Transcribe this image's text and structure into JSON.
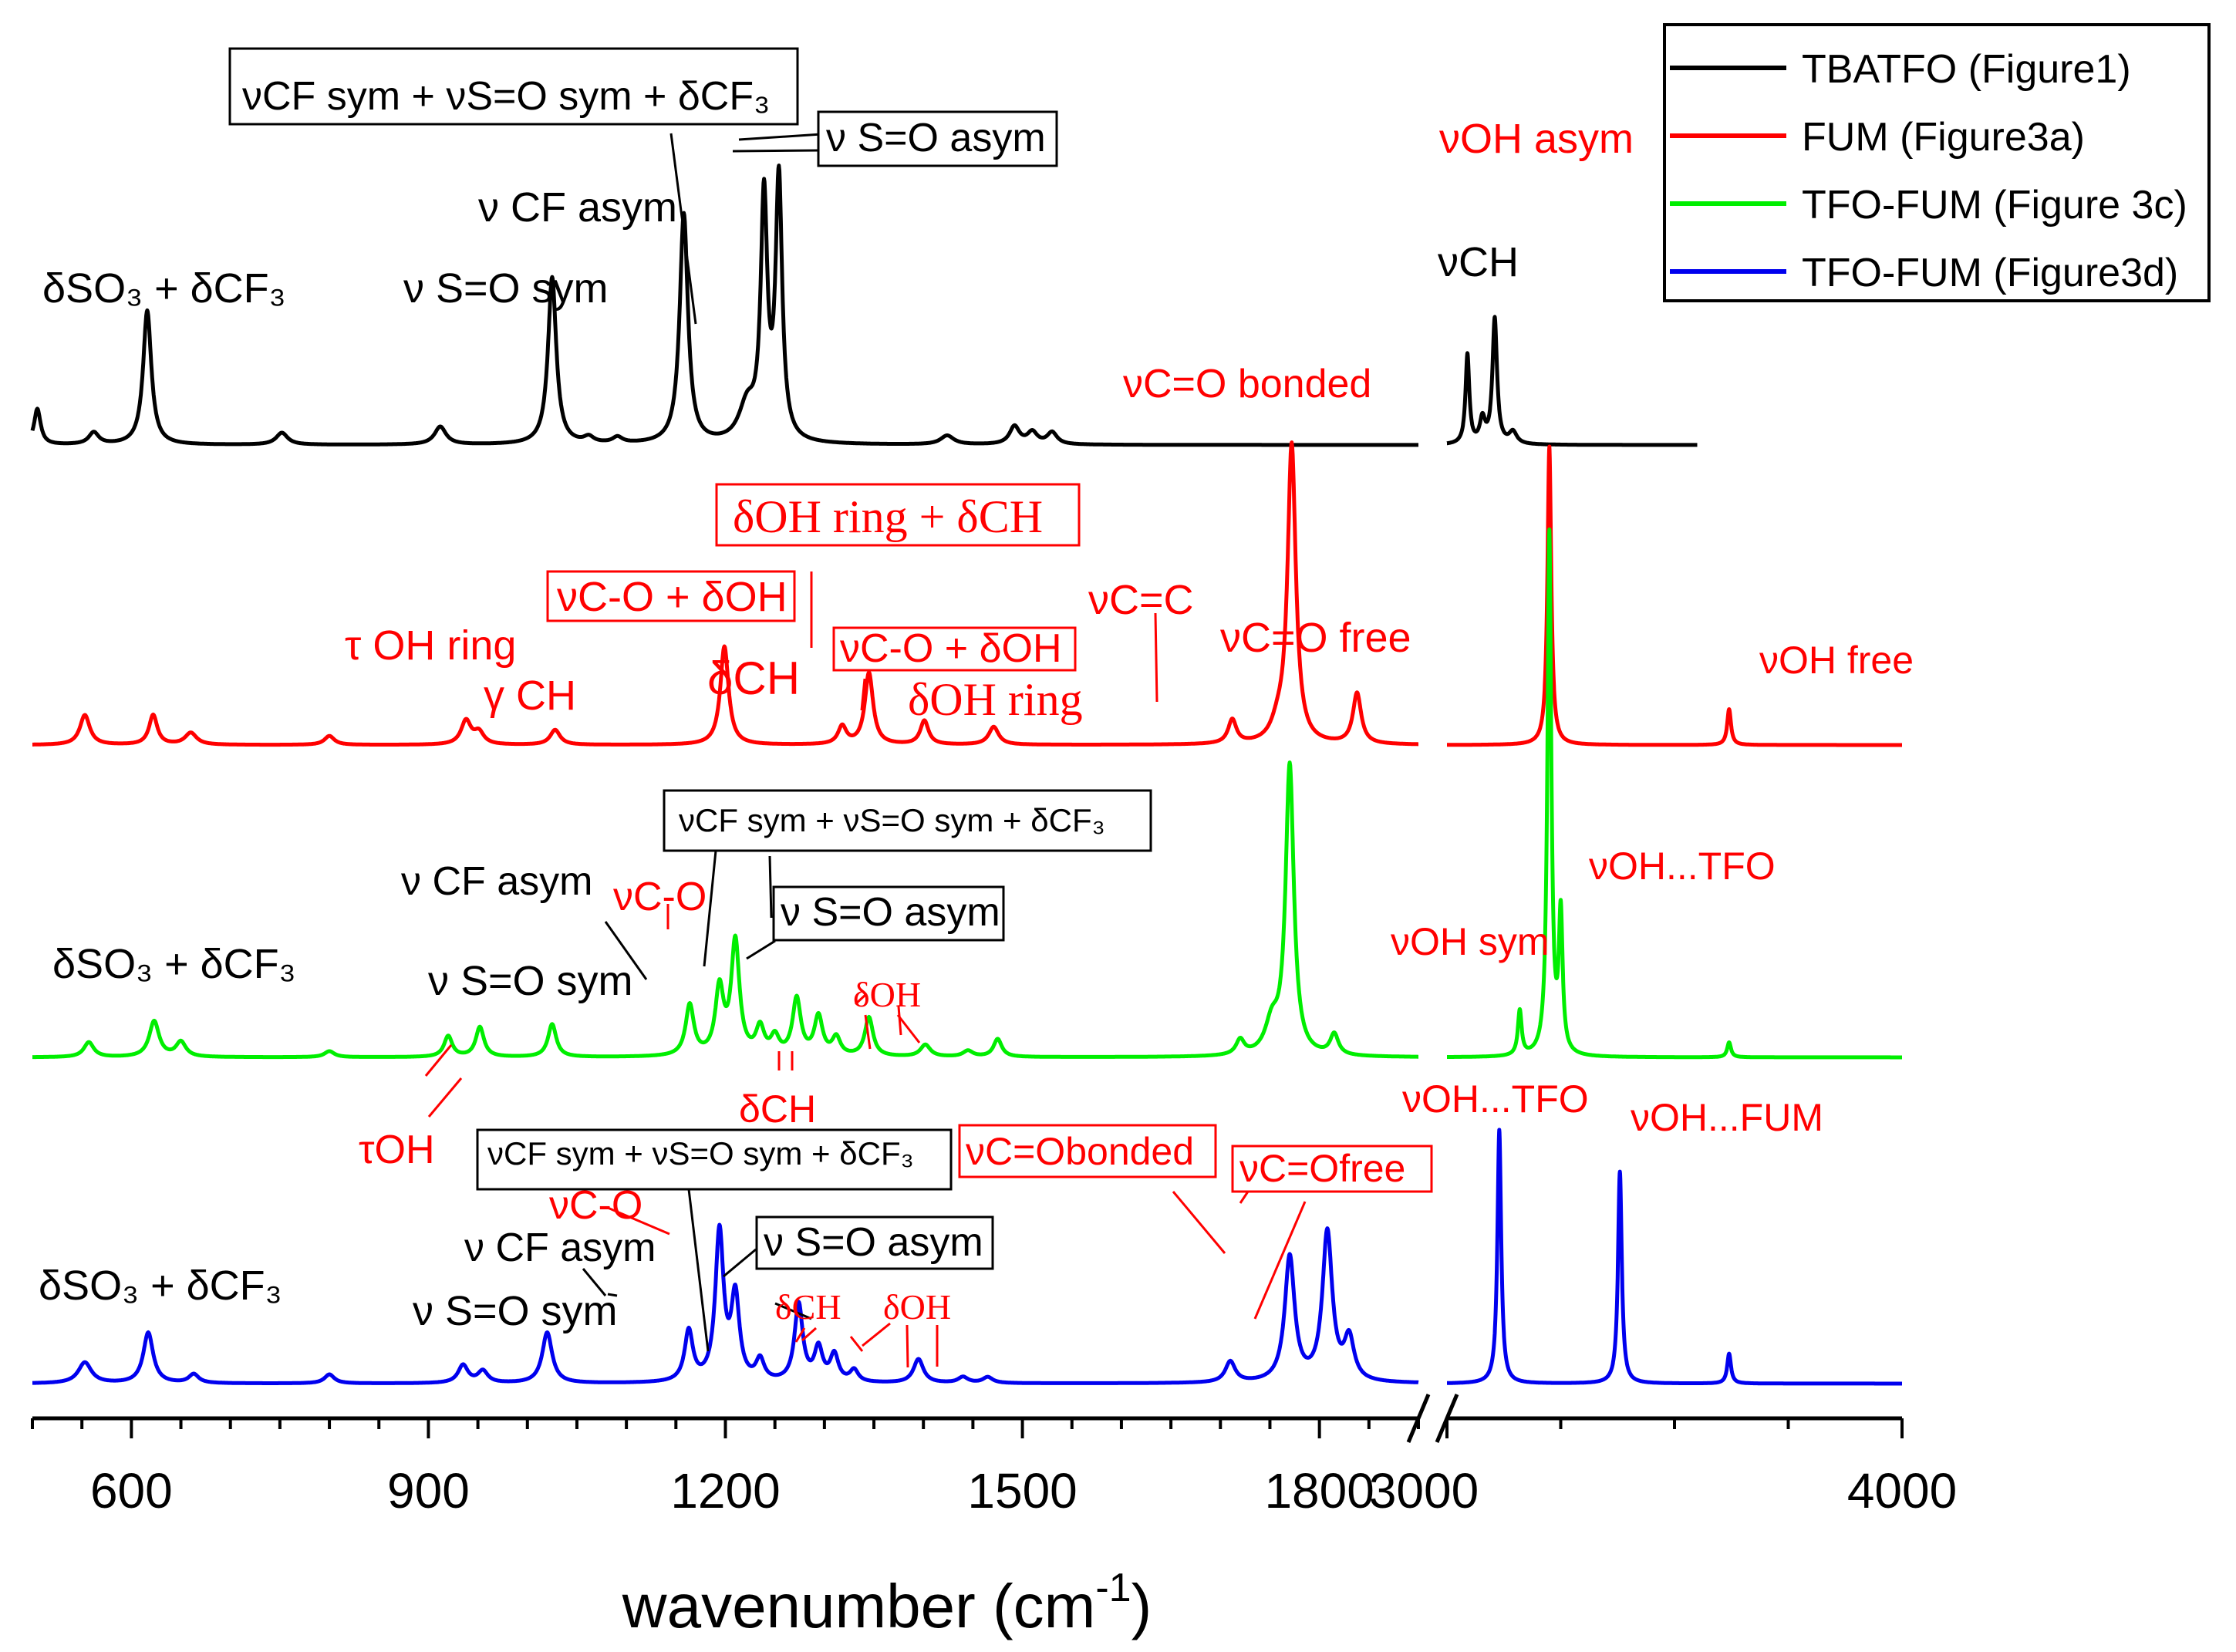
{
  "chart_data": {
    "type": "line",
    "title": "",
    "xlabel": "wavenumber (cm",
    "xlabel_sup": "-1",
    "xlabel_close": ")",
    "ylabel": "",
    "axis_break": "1900-3000",
    "segments": [
      {
        "xmin": 500,
        "xmax": 1900,
        "ticks": [
          600,
          900,
          1200,
          1500,
          1800
        ]
      },
      {
        "xmin": 3000,
        "xmax": 4000,
        "ticks": [
          3000,
          4000
        ]
      }
    ],
    "tick_labels": [
      "600",
      "900",
      "1200",
      "1500",
      "1800",
      "3000",
      "4000"
    ],
    "legend": {
      "position": "top-right",
      "entries": [
        {
          "label": "TBATFO (Figure1)",
          "color": "#000000"
        },
        {
          "label": "FUM (Figure3a)",
          "color": "#ff0000"
        },
        {
          "label": "TFO-FUM (Figure 3c)",
          "color": "#00ee00"
        },
        {
          "label": "TFO-FUM (Figure3d)",
          "color": "#0000ee"
        }
      ]
    },
    "series": [
      {
        "name": "TBATFO (Figure1)",
        "color": "#000000",
        "xmax": 3550,
        "offset": 3,
        "scale": 1.0,
        "peaks": [
          [
            505,
            0.12,
            4
          ],
          [
            562,
            0.04,
            6
          ],
          [
            616,
            0.45,
            5
          ],
          [
            752,
            0.04,
            7
          ],
          [
            912,
            0.06,
            7
          ],
          [
            1025,
            0.56,
            5
          ],
          [
            1062,
            0.02,
            6
          ],
          [
            1091,
            0.02,
            6
          ],
          [
            1158,
            0.77,
            5
          ],
          [
            1222,
            0.12,
            10
          ],
          [
            1239,
            0.8,
            4
          ],
          [
            1254,
            0.87,
            4
          ],
          [
            1424,
            0.03,
            8
          ],
          [
            1492,
            0.06,
            6
          ],
          [
            1510,
            0.04,
            6
          ],
          [
            1530,
            0.04,
            6
          ],
          [
            3045,
            0.3,
            5
          ],
          [
            3078,
            0.08,
            7
          ],
          [
            3105,
            0.42,
            6
          ],
          [
            3145,
            0.04,
            10
          ]
        ]
      },
      {
        "name": "FUM (Figure3a)",
        "color": "#ff0000",
        "offset": 2,
        "scale": 1.0,
        "peaks": [
          [
            553,
            0.1,
            6
          ],
          [
            622,
            0.1,
            5
          ],
          [
            660,
            0.04,
            7
          ],
          [
            800,
            0.03,
            6
          ],
          [
            938,
            0.08,
            6
          ],
          [
            951,
            0.04,
            6
          ],
          [
            1028,
            0.05,
            6
          ],
          [
            1199,
            0.33,
            5
          ],
          [
            1318,
            0.06,
            5
          ],
          [
            1345,
            0.24,
            5
          ],
          [
            1401,
            0.08,
            5
          ],
          [
            1471,
            0.06,
            6
          ],
          [
            1712,
            0.08,
            5
          ],
          [
            1758,
            0.05,
            8
          ],
          [
            1772,
            1.0,
            5
          ],
          [
            1838,
            0.17,
            5
          ],
          [
            3225,
            1.0,
            5
          ],
          [
            3620,
            0.12,
            5
          ]
        ]
      },
      {
        "name": "TFO-FUM (Figure 3c)",
        "color": "#00ee00",
        "offset": 1,
        "scale": 1.0,
        "peaks": [
          [
            557,
            0.05,
            6
          ],
          [
            623,
            0.12,
            6
          ],
          [
            650,
            0.05,
            6
          ],
          [
            800,
            0.02,
            6
          ],
          [
            920,
            0.07,
            5
          ],
          [
            952,
            0.1,
            5
          ],
          [
            1025,
            0.11,
            5
          ],
          [
            1164,
            0.17,
            5
          ],
          [
            1194,
            0.22,
            5
          ],
          [
            1210,
            0.38,
            5
          ],
          [
            1235,
            0.09,
            5
          ],
          [
            1250,
            0.06,
            5
          ],
          [
            1272,
            0.19,
            5
          ],
          [
            1294,
            0.13,
            5
          ],
          [
            1312,
            0.06,
            5
          ],
          [
            1345,
            0.13,
            5
          ],
          [
            1402,
            0.04,
            6
          ],
          [
            1445,
            0.02,
            6
          ],
          [
            1475,
            0.06,
            5
          ],
          [
            1720,
            0.05,
            5
          ],
          [
            1752,
            0.1,
            8
          ],
          [
            1770,
            0.97,
            5
          ],
          [
            1815,
            0.07,
            5
          ],
          [
            3160,
            0.15,
            5
          ],
          [
            3225,
            1.75,
            5
          ],
          [
            3250,
            0.46,
            5
          ],
          [
            3620,
            0.05,
            5
          ]
        ]
      },
      {
        "name": "TFO-FUM (Figure3d)",
        "color": "#0000ee",
        "offset": 0,
        "scale": 1.0,
        "peaks": [
          [
            553,
            0.07,
            8
          ],
          [
            617,
            0.17,
            6
          ],
          [
            663,
            0.03,
            6
          ],
          [
            800,
            0.03,
            6
          ],
          [
            935,
            0.06,
            6
          ],
          [
            955,
            0.04,
            6
          ],
          [
            1020,
            0.17,
            6
          ],
          [
            1163,
            0.17,
            5
          ],
          [
            1194,
            0.5,
            5
          ],
          [
            1210,
            0.28,
            5
          ],
          [
            1235,
            0.07,
            5
          ],
          [
            1274,
            0.26,
            5
          ],
          [
            1294,
            0.11,
            5
          ],
          [
            1310,
            0.09,
            5
          ],
          [
            1330,
            0.04,
            5
          ],
          [
            1395,
            0.08,
            6
          ],
          [
            1440,
            0.02,
            6
          ],
          [
            1465,
            0.02,
            6
          ],
          [
            1710,
            0.07,
            6
          ],
          [
            1770,
            0.42,
            6
          ],
          [
            1808,
            0.5,
            6
          ],
          [
            1830,
            0.14,
            6
          ],
          [
            3115,
            0.85,
            5
          ],
          [
            3380,
            0.71,
            5
          ],
          [
            3620,
            0.1,
            5
          ]
        ]
      }
    ],
    "annotations": [
      {
        "text": "δSO₃ + δCF₃",
        "series": "TBATFO (Figure1)",
        "color": "#000000",
        "boxed": false,
        "serif": false
      },
      {
        "text": "ν S=O sym",
        "series": "TBATFO (Figure1)",
        "color": "#000000",
        "boxed": false,
        "serif": false
      },
      {
        "text": "ν CF asym",
        "series": "TBATFO (Figure1)",
        "color": "#000000",
        "boxed": false,
        "serif": false
      },
      {
        "text": "νCF sym + νS=O sym + δCF₃",
        "series": "TBATFO (Figure1)",
        "color": "#000000",
        "boxed": true,
        "serif": false
      },
      {
        "text": "ν S=O asym",
        "series": "TBATFO (Figure1)",
        "color": "#000000",
        "boxed": true,
        "serif": false
      },
      {
        "text": "νCH",
        "series": "TBATFO (Figure1)",
        "color": "#000000",
        "boxed": false,
        "serif": false
      },
      {
        "text": "νOH asym",
        "series": "FUM (Figure3a)",
        "color": "#ff0000",
        "boxed": false,
        "serif": false
      },
      {
        "text": "νC=O bonded",
        "series": "FUM (Figure3a)",
        "color": "#ff0000",
        "boxed": false,
        "serif": false
      },
      {
        "text": "δOH ring + δCH",
        "series": "FUM (Figure3a)",
        "color": "#ff0000",
        "boxed": true,
        "serif": true
      },
      {
        "text": "νC-O + δOH",
        "series": "FUM (Figure3a)",
        "color": "#ff0000",
        "boxed": true,
        "serif": false
      },
      {
        "text": "τ OH ring",
        "series": "FUM (Figure3a)",
        "color": "#ff0000",
        "boxed": false,
        "serif": false
      },
      {
        "text": "γ CH",
        "series": "FUM (Figure3a)",
        "color": "#ff0000",
        "boxed": false,
        "serif": false
      },
      {
        "text": "δCH",
        "series": "FUM (Figure3a)",
        "color": "#ff0000",
        "boxed": false,
        "serif": false
      },
      {
        "text": "νC-O + δOH",
        "series": "FUM (Figure3a)",
        "color": "#ff0000",
        "boxed": true,
        "serif": false
      },
      {
        "text": "δOH ring",
        "series": "FUM (Figure3a)",
        "color": "#ff0000",
        "boxed": false,
        "serif": false
      },
      {
        "text": "νC=C",
        "series": "FUM (Figure3a)",
        "color": "#ff0000",
        "boxed": false,
        "serif": false
      },
      {
        "text": "νC=O free",
        "series": "FUM (Figure3a)",
        "color": "#ff0000",
        "boxed": false,
        "serif": false
      },
      {
        "text": "νOH free",
        "series": "FUM (Figure3a)",
        "color": "#ff0000",
        "boxed": false,
        "serif": false
      },
      {
        "text": "νCF sym + νS=O sym + δCF₃",
        "series": "TFO-FUM (Figure 3c)",
        "color": "#000000",
        "boxed": true,
        "serif": false
      },
      {
        "text": "ν CF asym",
        "series": "TFO-FUM (Figure 3c)",
        "color": "#000000",
        "boxed": false,
        "serif": false
      },
      {
        "text": "νC-O",
        "series": "TFO-FUM (Figure 3c)",
        "color": "#ff0000",
        "boxed": false,
        "serif": false
      },
      {
        "text": "ν S=O asym",
        "series": "TFO-FUM (Figure 3c)",
        "color": "#000000",
        "boxed": true,
        "serif": false
      },
      {
        "text": "δSO₃ + δCF₃",
        "series": "TFO-FUM (Figure 3c)",
        "color": "#000000",
        "boxed": false,
        "serif": false
      },
      {
        "text": "ν S=O sym",
        "series": "TFO-FUM (Figure 3c)",
        "color": "#000000",
        "boxed": false,
        "serif": false
      },
      {
        "text": "δOH",
        "series": "TFO-FUM (Figure 3c)",
        "color": "#ff0000",
        "boxed": false,
        "serif": true
      },
      {
        "text": "δCH",
        "series": "TFO-FUM (Figure 3c)",
        "color": "#ff0000",
        "boxed": false,
        "serif": false
      },
      {
        "text": "τOH",
        "series": "TFO-FUM (Figure 3c)",
        "color": "#ff0000",
        "boxed": false,
        "serif": false
      },
      {
        "text": "νOH...TFO",
        "series": "TFO-FUM (Figure 3c)",
        "color": "#ff0000",
        "boxed": false,
        "serif": false
      },
      {
        "text": "νOH sym",
        "series": "TFO-FUM (Figure 3c)",
        "color": "#ff0000",
        "boxed": false,
        "serif": false
      },
      {
        "text": "νOH...TFO",
        "series": "TFO-FUM (Figure3d)",
        "color": "#ff0000",
        "boxed": false,
        "serif": false
      },
      {
        "text": "νOH...FUM",
        "series": "TFO-FUM (Figure3d)",
        "color": "#ff0000",
        "boxed": false,
        "serif": false
      },
      {
        "text": "νCF sym + νS=O sym + δCF₃",
        "series": "TFO-FUM (Figure3d)",
        "color": "#000000",
        "boxed": true,
        "serif": false
      },
      {
        "text": "νC=Obonded",
        "series": "TFO-FUM (Figure3d)",
        "color": "#ff0000",
        "boxed": true,
        "serif": false
      },
      {
        "text": "νC=Ofree",
        "series": "TFO-FUM (Figure3d)",
        "color": "#ff0000",
        "boxed": true,
        "serif": false
      },
      {
        "text": "νC-O",
        "series": "TFO-FUM (Figure3d)",
        "color": "#ff0000",
        "boxed": false,
        "serif": false
      },
      {
        "text": "ν CF asym",
        "series": "TFO-FUM (Figure3d)",
        "color": "#000000",
        "boxed": false,
        "serif": false
      },
      {
        "text": "ν S=O asym",
        "series": "TFO-FUM (Figure3d)",
        "color": "#000000",
        "boxed": true,
        "serif": false
      },
      {
        "text": "δSO₃ + δCF₃",
        "series": "TFO-FUM (Figure3d)",
        "color": "#000000",
        "boxed": false,
        "serif": false
      },
      {
        "text": "ν S=O sym",
        "series": "TFO-FUM (Figure3d)",
        "color": "#000000",
        "boxed": false,
        "serif": false
      },
      {
        "text": "δCH",
        "series": "TFO-FUM (Figure3d)",
        "color": "#ff0000",
        "boxed": false,
        "serif": true
      },
      {
        "text": "δOH",
        "series": "TFO-FUM (Figure3d)",
        "color": "#ff0000",
        "boxed": false,
        "serif": true
      }
    ]
  }
}
